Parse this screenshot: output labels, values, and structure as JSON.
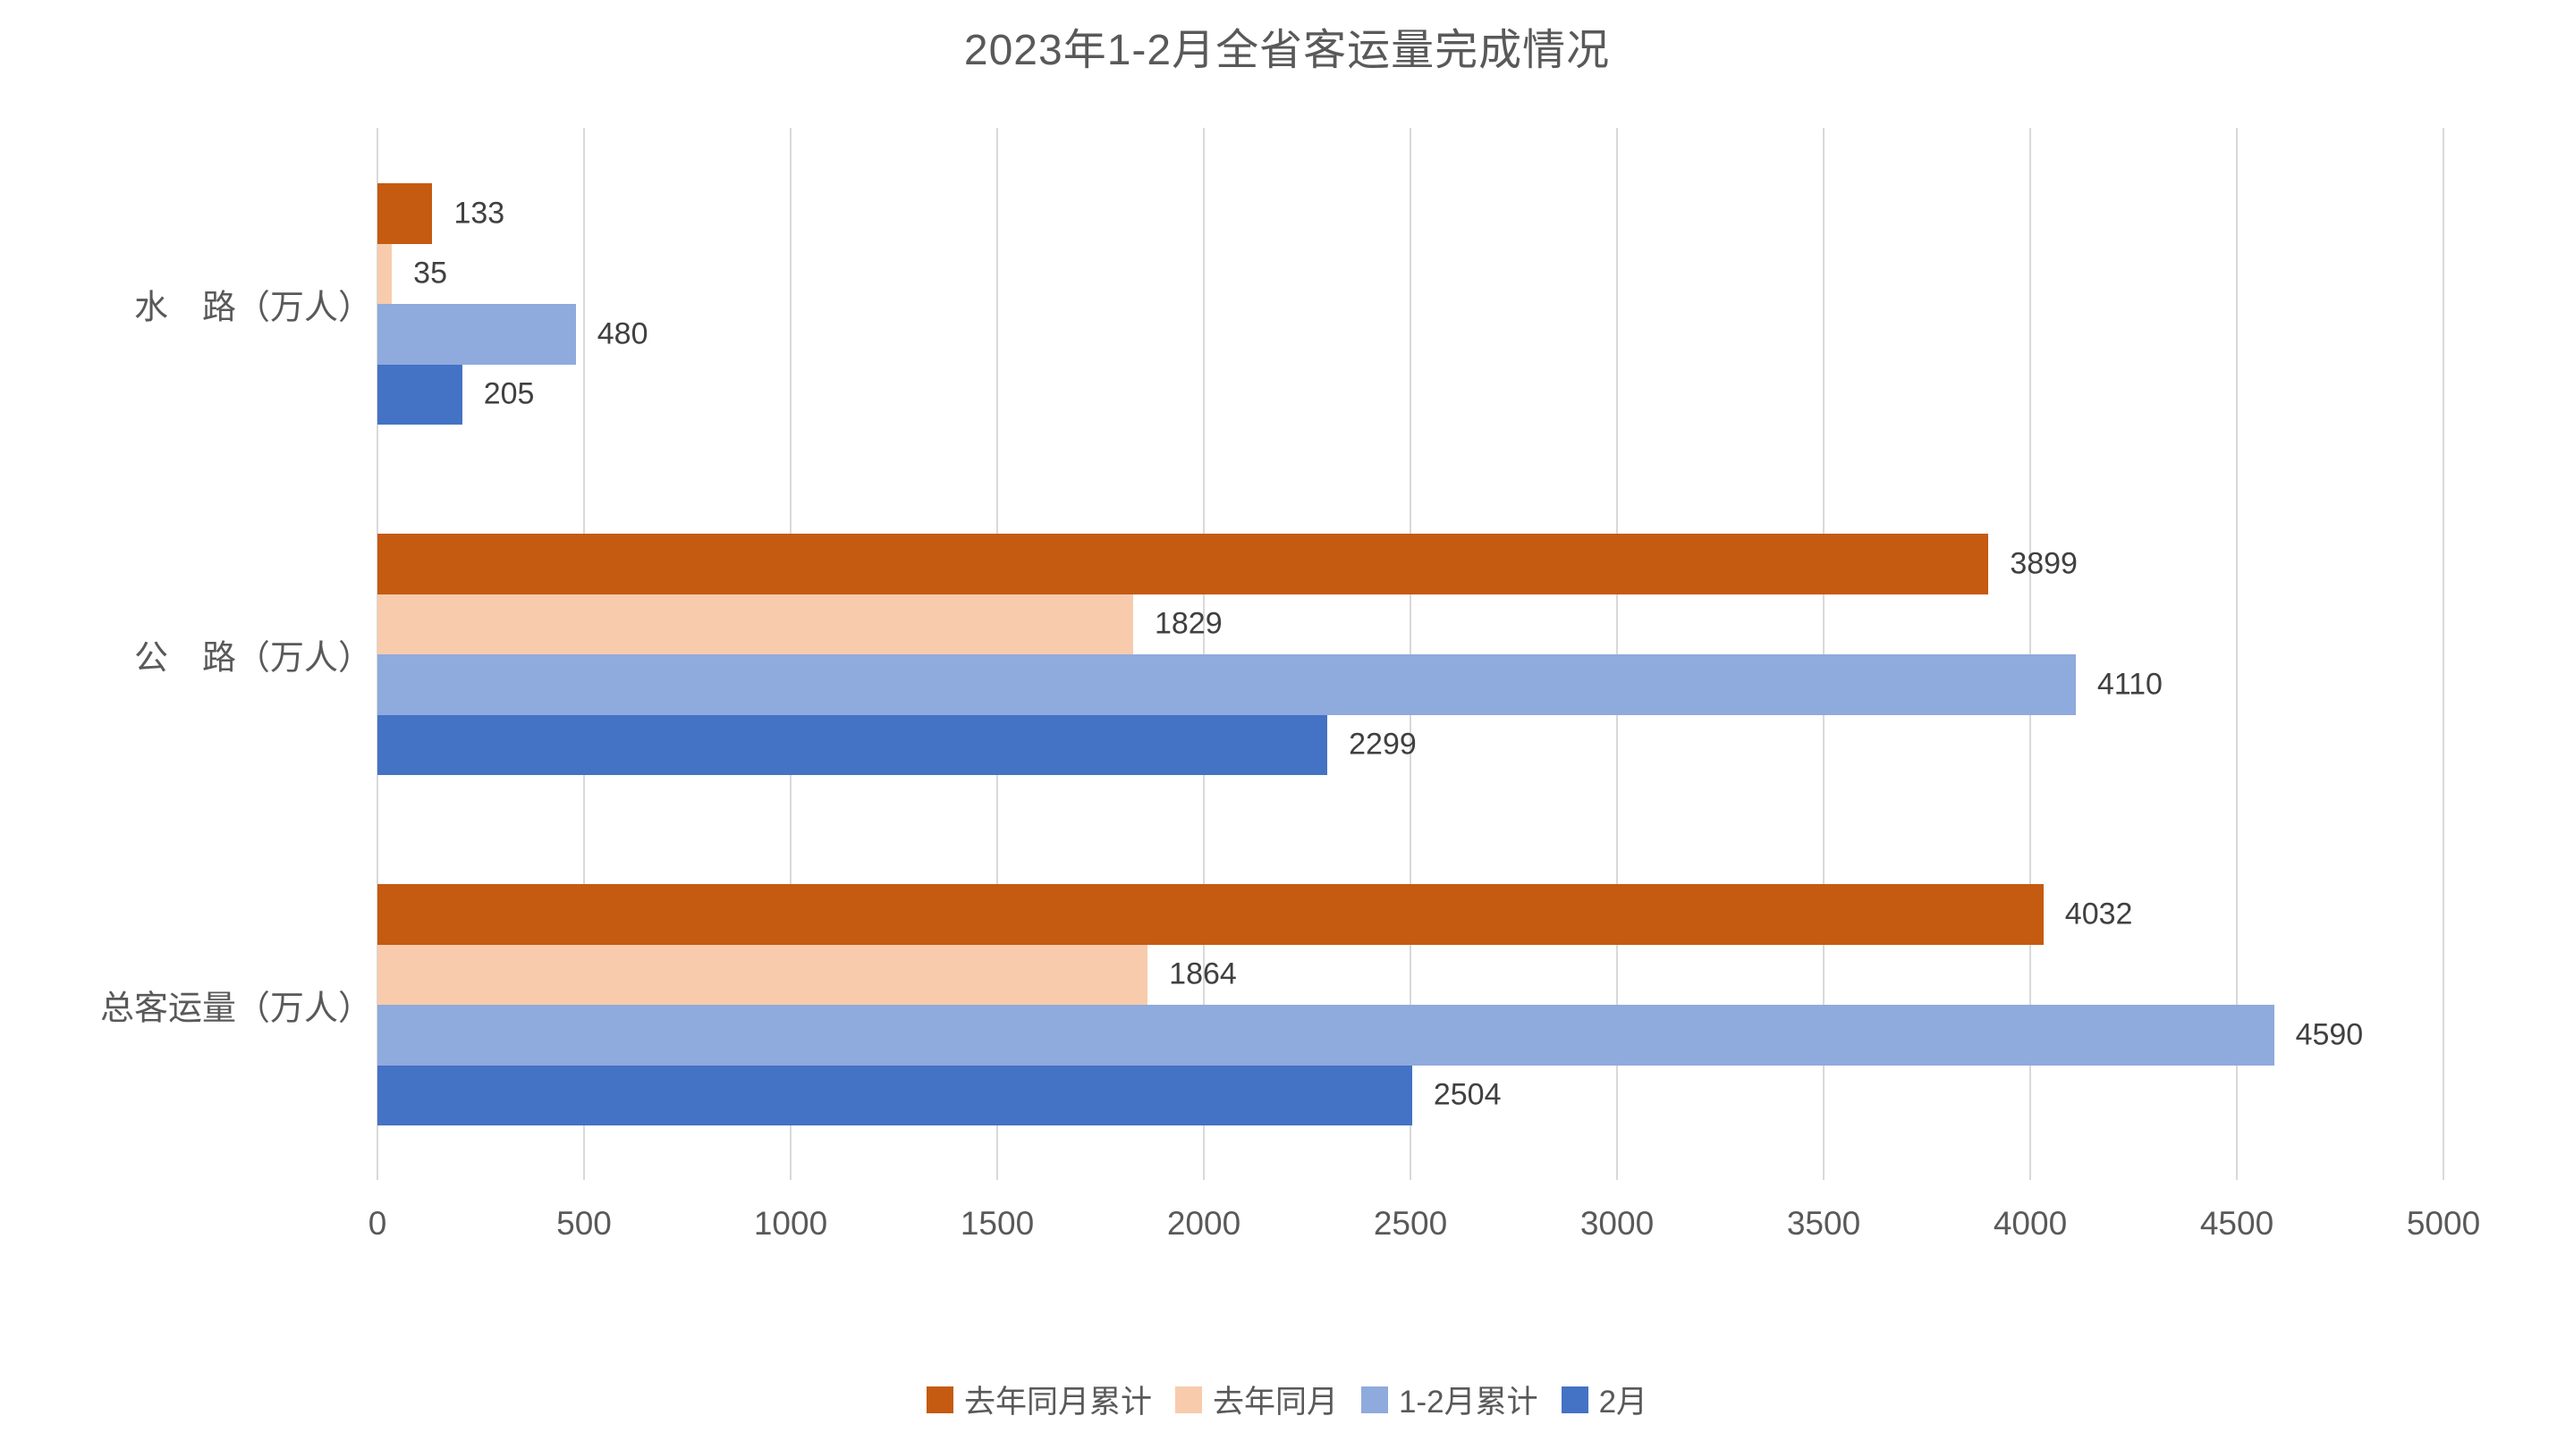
{
  "title": "2023年1-2月全省客运量完成情况",
  "colors": {
    "series_last_year_cumulative": "#C55A11",
    "series_last_year_month": "#F8CBAD",
    "series_jan_feb_cumulative": "#8FAADC",
    "series_february": "#4472C4",
    "gridline": "#d9d9d9",
    "text": "#595959",
    "value_label_text": "#404040",
    "background": "#ffffff"
  },
  "chart_data": {
    "type": "bar",
    "orientation": "horizontal",
    "title": "2023年1-2月全省客运量完成情况",
    "categories": [
      "水　路（万人）",
      "公　路（万人）",
      "总客运量（万人）"
    ],
    "series": [
      {
        "name": "去年同月累计",
        "color": "#C55A11",
        "values": [
          133,
          3899,
          4032
        ]
      },
      {
        "name": "去年同月",
        "color": "#F8CBAD",
        "values": [
          35,
          1829,
          1864
        ]
      },
      {
        "name": "1-2月累计",
        "color": "#8FAADC",
        "values": [
          480,
          4110,
          4590
        ]
      },
      {
        "name": "2月",
        "color": "#4472C4",
        "values": [
          205,
          2299,
          2504
        ]
      }
    ],
    "xlim": [
      0,
      5000
    ],
    "x_ticks": [
      "0",
      "500",
      "1000",
      "1500",
      "2000",
      "2500",
      "3000",
      "3500",
      "4000",
      "4500",
      "5000"
    ],
    "grid": true,
    "value_labels": true,
    "legend_position": "bottom"
  }
}
